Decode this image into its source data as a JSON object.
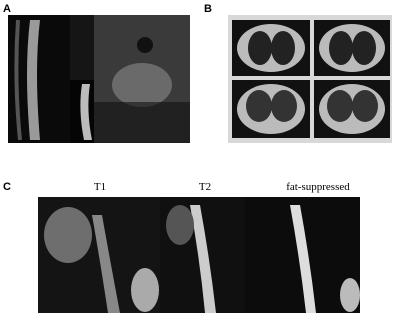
{
  "panels": [
    {
      "label": "A"
    },
    {
      "label": "B"
    },
    {
      "label": "C",
      "columns": [
        "T1",
        "T2",
        "fat-suppressed"
      ]
    }
  ]
}
